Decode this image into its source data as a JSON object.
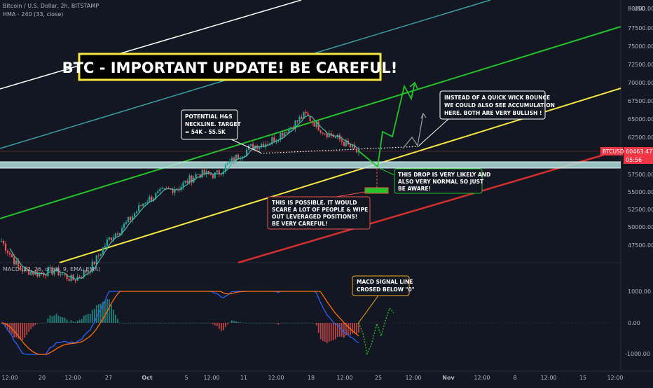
{
  "header": {
    "symbol_line": "Bitcoin / U.S. Dollar, 2h, BITSTAMP",
    "indicator_line": "HMA - 240 (33, close)",
    "currency": "USD"
  },
  "headline": "BTC - IMPORTANT UPDATE! BE CAREFUL!",
  "price_badge": {
    "symbol": "BTCUSD",
    "price": "60463.47",
    "countdown": "05:56",
    "color": "#f23645"
  },
  "price_axis": {
    "labels": [
      "80000.00",
      "77500.00",
      "75000.00",
      "72500.00",
      "70000.00",
      "67500.00",
      "65000.00",
      "62500.00",
      "57500.00",
      "55000.00",
      "52500.00",
      "50000.00",
      "47500.00"
    ]
  },
  "macd_axis": {
    "labels": [
      "1000.00",
      "0.00",
      "-1000.00"
    ]
  },
  "macd_legend": "MACD (12, 26, close, 9, EMA, EMA)",
  "time_axis": {
    "labels": [
      "12:00",
      "20",
      "12:00",
      "27",
      "Oct",
      "5",
      "12:00",
      "11",
      "12:00",
      "18",
      "12:00",
      "25",
      "12:00",
      "12:00",
      "Nov",
      "12:00",
      "8",
      "12:00",
      "12:00",
      "15",
      "12:00"
    ]
  },
  "notes": {
    "hs": [
      "POTENTIAL H&S",
      "NECKLINE. TARGET",
      "= 54K - 55.5K"
    ],
    "wick": [
      "INSTEAD OF A QUICK WICK BOUNCE",
      "WE COULD ALSO SEE ACCUMULATION",
      "HERE. BOTH ARE VERY BULLISH !"
    ],
    "drop": [
      "THIS DROP IS VERY LIKELY AND",
      "ALSO VERY NORMAL SO JUST",
      "BE AWARE!"
    ],
    "scare": [
      "THIS IS POSSIBLE. IT WOULD",
      " SCARE A LOT OF PEOPLE & WIPE",
      "OUT LEVERAGED POSITIONS!",
      "BE VERY CAREFUL!"
    ],
    "macd": [
      "MACD SIGNAL LINE",
      "CROSED BELOW \"0\""
    ]
  },
  "colors": {
    "background": "#131722",
    "up": "#26a69a",
    "down": "#ef5350",
    "green_channel": "#22c22b",
    "yellow_channel": "#f5e642",
    "red_channel": "#d32f2f",
    "support_zone": "#b2dfdb",
    "headline_border": "#f5e642",
    "macd_line": "#2962ff",
    "signal_line": "#ff6d00"
  },
  "chart_data": {
    "type": "candlestick",
    "title": "Bitcoin / U.S. Dollar, 2h, BITSTAMP",
    "price_close_path": [
      {
        "date": "Sep 20",
        "close": 47600
      },
      {
        "date": "Sep 22",
        "close": 43500
      },
      {
        "date": "Sep 24",
        "close": 42800
      },
      {
        "date": "Sep 27",
        "close": 43200
      },
      {
        "date": "Sep 29",
        "close": 41800
      },
      {
        "date": "Oct 1",
        "close": 43600
      },
      {
        "date": "Oct 3",
        "close": 47800
      },
      {
        "date": "Oct 5",
        "close": 50200
      },
      {
        "date": "Oct 7",
        "close": 53400
      },
      {
        "date": "Oct 9",
        "close": 54800
      },
      {
        "date": "Oct 11",
        "close": 55600
      },
      {
        "date": "Oct 12",
        "close": 57500
      },
      {
        "date": "Oct 14",
        "close": 57300
      },
      {
        "date": "Oct 15",
        "close": 59600
      },
      {
        "date": "Oct 16",
        "close": 61500
      },
      {
        "date": "Oct 18",
        "close": 62200
      },
      {
        "date": "Oct 19",
        "close": 64000
      },
      {
        "date": "Oct 20",
        "close": 66200
      },
      {
        "date": "Oct 21",
        "close": 63800
      },
      {
        "date": "Oct 22",
        "close": 62400
      },
      {
        "date": "Oct 23",
        "close": 60463
      }
    ],
    "current_price": 60463.47,
    "support_zone": [
      58100,
      59000
    ],
    "projection_bullish": [
      {
        "date": "Oct 23",
        "close": 60463
      },
      {
        "date": "Oct 24",
        "close": 57800
      },
      {
        "date": "Oct 24.5",
        "close": 62800
      },
      {
        "date": "Oct 25",
        "close": 62300
      },
      {
        "date": "Oct 25.5",
        "close": 66400
      },
      {
        "date": "Oct 26",
        "close": 64500
      },
      {
        "date": "Oct 27",
        "close": 70100
      }
    ],
    "macd": {
      "name": "MACD (12, 26, close, 9, EMA, EMA)",
      "zero": 0,
      "ylim": [
        -1300,
        1300
      ]
    },
    "price_ylim": [
      45000,
      81000
    ]
  }
}
